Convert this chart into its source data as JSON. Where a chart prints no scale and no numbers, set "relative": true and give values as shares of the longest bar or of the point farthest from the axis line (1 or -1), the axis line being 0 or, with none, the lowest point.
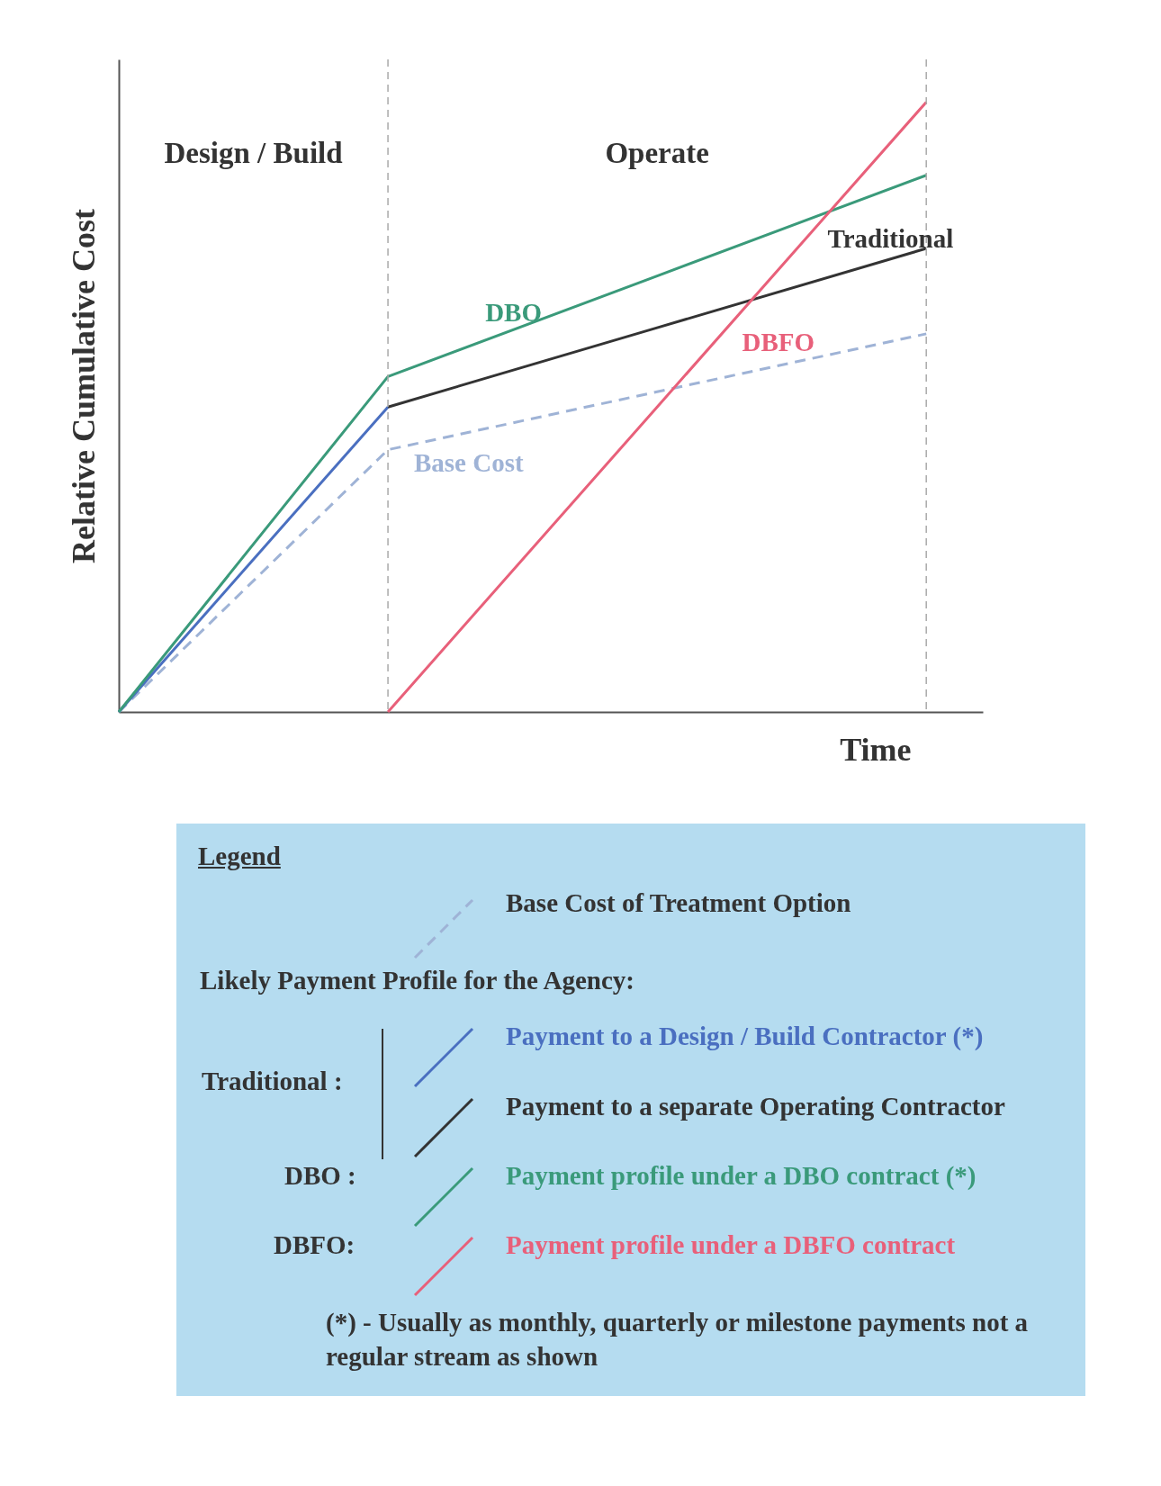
{
  "chart_data": {
    "type": "line",
    "relative": true,
    "xlabel": "Time",
    "ylabel": "Relative Cumulative Cost",
    "categories": [
      null,
      null,
      null,
      null
    ],
    "tick_labels": false,
    "grid": false,
    "legend": false,
    "marker": "none",
    "series": [
      {
        "name": "Base Cost",
        "color": "#9fb3d6",
        "line_style": "dashed",
        "values": [
          0,
          0.43,
          0.525,
          0.62
        ]
      },
      {
        "color": "#4a6fc0",
        "values": [
          0,
          0.5,
          null,
          null
        ]
      },
      {
        "name": "Traditional",
        "color": "#333333",
        "values": [
          null,
          0.5,
          0.63,
          0.76
        ]
      },
      {
        "name": "DBO",
        "color": "#3a9a7a",
        "values": [
          0,
          0.55,
          0.715,
          0.88
        ]
      },
      {
        "name": "DBFO",
        "color": "#e8607a",
        "values": [
          null,
          0,
          0.5,
          1
        ]
      }
    ],
    "annotations": [
      "Design / Build",
      "Operate",
      "Legend",
      "Base Cost of Treatment Option",
      "Likely Payment Profile for the Agency:",
      "Traditional :",
      "Payment to a Design / Build Contractor (*)",
      "Payment to a separate Operating Contractor",
      "DBO :",
      "Payment profile under a DBO contract (*)",
      "DBFO:",
      "Payment profile under a DBFO contract",
      "(*) - Usually as monthly, quarterly or milestone payments not a regular stream as shown"
    ]
  }
}
